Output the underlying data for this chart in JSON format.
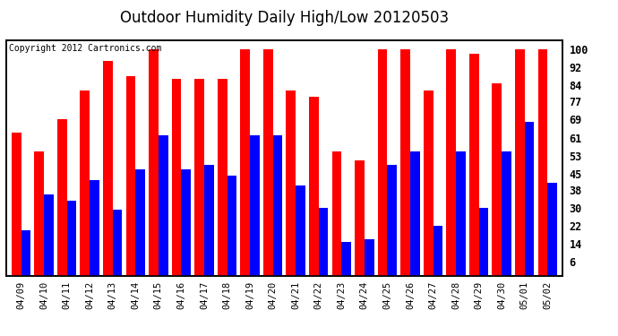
{
  "title": "Outdoor Humidity Daily High/Low 20120503",
  "copyright": "Copyright 2012 Cartronics.com",
  "dates": [
    "04/09",
    "04/10",
    "04/11",
    "04/12",
    "04/13",
    "04/14",
    "04/15",
    "04/16",
    "04/17",
    "04/18",
    "04/19",
    "04/20",
    "04/21",
    "04/22",
    "04/23",
    "04/24",
    "04/25",
    "04/26",
    "04/27",
    "04/28",
    "04/29",
    "04/30",
    "05/01",
    "05/02"
  ],
  "highs": [
    63,
    55,
    69,
    82,
    95,
    88,
    100,
    87,
    87,
    87,
    100,
    100,
    82,
    79,
    55,
    51,
    100,
    100,
    82,
    100,
    98,
    85,
    100,
    100
  ],
  "lows": [
    20,
    36,
    33,
    42,
    29,
    47,
    62,
    47,
    49,
    44,
    62,
    62,
    40,
    30,
    15,
    16,
    49,
    55,
    22,
    55,
    30,
    55,
    68,
    41
  ],
  "high_color": "#ff0000",
  "low_color": "#0000ff",
  "bg_color": "#ffffff",
  "grid_color": "#bbbbbb",
  "bar_width": 0.42,
  "ylim_max": 104,
  "yticks": [
    6,
    14,
    22,
    30,
    38,
    45,
    53,
    61,
    69,
    77,
    84,
    92,
    100
  ],
  "title_fontsize": 12,
  "tick_fontsize": 7.5,
  "copyright_fontsize": 7
}
